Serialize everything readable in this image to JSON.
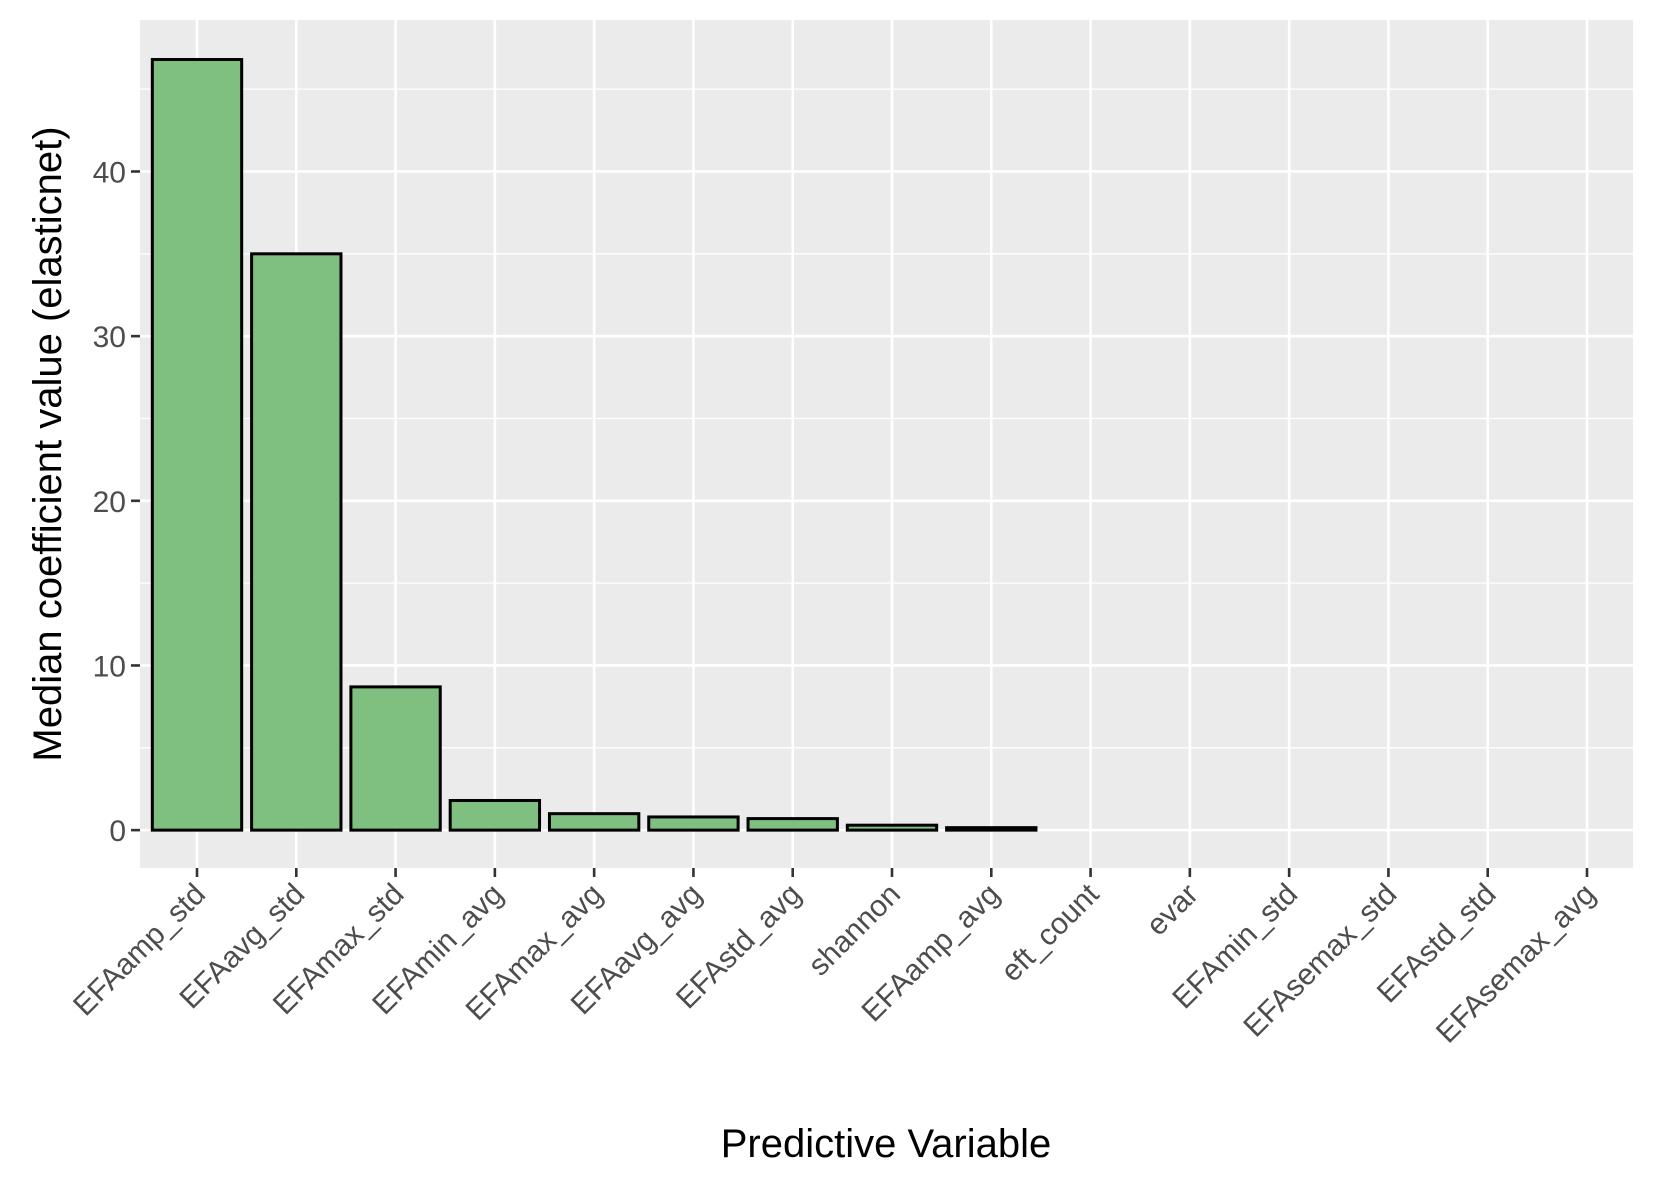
{
  "chart_data": {
    "type": "bar",
    "xlabel": "Predictive Variable",
    "ylabel": "Median coefficient value (elasticnet)",
    "categories": [
      "EFAamp_std",
      "EFAavg_std",
      "EFAmax_std",
      "EFAmin_avg",
      "EFAmax_avg",
      "EFAavg_avg",
      "EFAstd_avg",
      "shannon",
      "EFAamp_avg",
      "eft_count",
      "evar",
      "EFAmin_std",
      "EFAsemax_std",
      "EFAstd_std",
      "EFAsemax_avg"
    ],
    "values": [
      46.8,
      35.0,
      8.7,
      1.8,
      1.0,
      0.8,
      0.7,
      0.3,
      0.15,
      0.0,
      0.0,
      0.0,
      0.0,
      0.0,
      0.0
    ],
    "yticks": [
      0,
      10,
      20,
      30,
      40
    ],
    "ylim": [
      -2.3,
      49.2
    ],
    "grid": true,
    "colors": {
      "bar_fill": "#7fbf7f",
      "bar_stroke": "#000000",
      "panel": "#ebebeb",
      "grid": "#ffffff"
    }
  }
}
